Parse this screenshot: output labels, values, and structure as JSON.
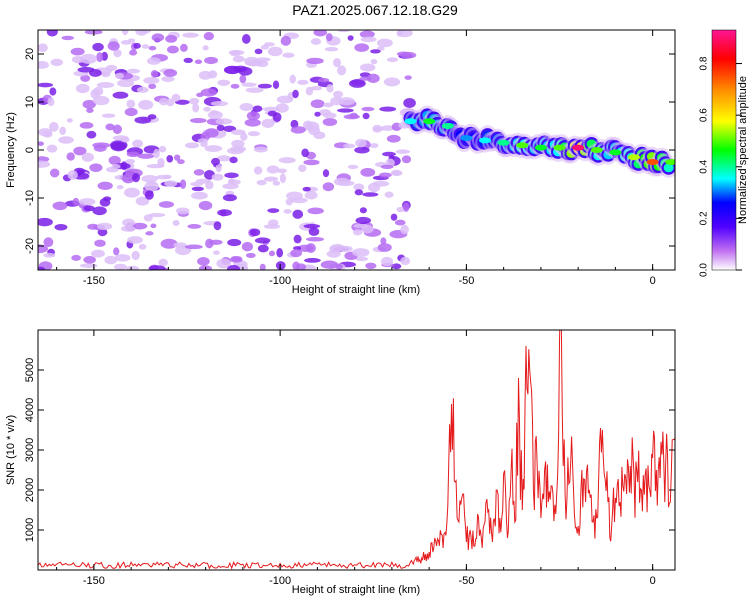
{
  "title": "PAZ1.2025.067.12.18.G29",
  "colors": {
    "snr_line": "#e41a1c",
    "noise": "#8a2be2",
    "axis": "#000000"
  },
  "chart_data": [
    {
      "type": "heatmap",
      "xlabel": "Height of straight line (km)",
      "ylabel": "Frequency (Hz)",
      "xlim": [
        -165,
        6
      ],
      "ylim": [
        -25,
        25
      ],
      "xticks": [
        -150,
        -100,
        -50,
        0
      ],
      "xtick_labels": [
        "-150",
        "-100",
        "-50",
        "0"
      ],
      "yticks": [
        -20,
        -10,
        0,
        10,
        20
      ],
      "ytick_labels": [
        "-20",
        "-10",
        "0",
        "10",
        "20"
      ],
      "colorbar": {
        "label": "Normalized spectral amplitude",
        "range": [
          0,
          0.93
        ],
        "ticks": [
          0.0,
          0.2,
          0.4,
          0.6,
          0.8
        ],
        "tick_labels": [
          "0.0",
          "0.2",
          "0.4",
          "0.6",
          "0.8"
        ],
        "colormap": [
          "#ffffff",
          "#a020f0",
          "#0000ff",
          "#00ffff",
          "#00ff00",
          "#ffff00",
          "#ff8c00",
          "#ff0000",
          "#ff1493"
        ]
      },
      "signal_ridge": {
        "x": [
          -65,
          -60,
          -55,
          -50,
          -45,
          -40,
          -35,
          -30,
          -25,
          -20,
          -15,
          -10,
          -5,
          0,
          5
        ],
        "frequency_hz": [
          6,
          6,
          5,
          2.5,
          2,
          1.5,
          1,
          0.5,
          0.5,
          0.5,
          0,
          -0.5,
          -1.5,
          -2.5,
          -2.5
        ],
        "peak_amplitude": [
          0.35,
          0.45,
          0.4,
          0.3,
          0.35,
          0.4,
          0.5,
          0.45,
          0.5,
          0.9,
          0.5,
          0.45,
          0.55,
          0.75,
          0.5
        ]
      },
      "noise_region": {
        "x_range": [
          -165,
          -65
        ],
        "frequency_range": [
          -25,
          25
        ],
        "amplitude": [
          0,
          0.15
        ]
      },
      "grid": false
    },
    {
      "type": "line",
      "xlabel": "Height of straight line (km)",
      "ylabel": "SNR (10 * v/v)",
      "xlim": [
        -165,
        6
      ],
      "ylim": [
        0,
        6000
      ],
      "xticks": [
        -150,
        -100,
        -50,
        0
      ],
      "xtick_labels": [
        "-150",
        "-100",
        "-50",
        "0"
      ],
      "yticks": [
        1000,
        2000,
        3000,
        4000,
        5000
      ],
      "ytick_labels": [
        "1000",
        "2000",
        "3000",
        "4000",
        "5000"
      ],
      "grid": false,
      "series": [
        {
          "x": [
            -165,
            -160,
            -150,
            -140,
            -130,
            -120,
            -110,
            -100,
            -90,
            -80,
            -70,
            -65,
            -62,
            -60,
            -58,
            -56,
            -55,
            -54,
            -53,
            -52,
            -51,
            -50,
            -49,
            -48,
            -47,
            -46,
            -45,
            -44,
            -43,
            -42,
            -41,
            -40,
            -39,
            -38,
            -37,
            -36,
            -35,
            -34,
            -33,
            -32,
            -31,
            -30,
            -29,
            -28,
            -27,
            -26,
            -25,
            -24,
            -23,
            -22,
            -21,
            -20,
            -19,
            -18,
            -17,
            -16,
            -15,
            -14,
            -13,
            -12,
            -11,
            -10,
            -9,
            -8,
            -7,
            -6,
            -5,
            -4,
            -3,
            -2,
            -1,
            0,
            1,
            2,
            3,
            4,
            5,
            6
          ],
          "y": [
            100,
            120,
            110,
            100,
            130,
            110,
            120,
            100,
            110,
            100,
            120,
            200,
            300,
            450,
            600,
            900,
            1600,
            4150,
            2200,
            1200,
            1900,
            700,
            1000,
            600,
            1400,
            800,
            1200,
            1500,
            700,
            2000,
            1300,
            2400,
            800,
            2500,
            1200,
            4800,
            1500,
            5600,
            5000,
            2000,
            2600,
            1300,
            2500,
            1700,
            2100,
            1400,
            5700,
            2600,
            1800,
            2700,
            1400,
            1100,
            2500,
            1700,
            2000,
            1200,
            1300,
            3550,
            2400,
            1700,
            1100,
            1800,
            1600,
            2100,
            1900,
            2600,
            2400,
            2200,
            2000,
            2400,
            2100,
            2800,
            2500,
            2300,
            2700,
            2900,
            2400,
            3300
          ]
        }
      ]
    }
  ]
}
